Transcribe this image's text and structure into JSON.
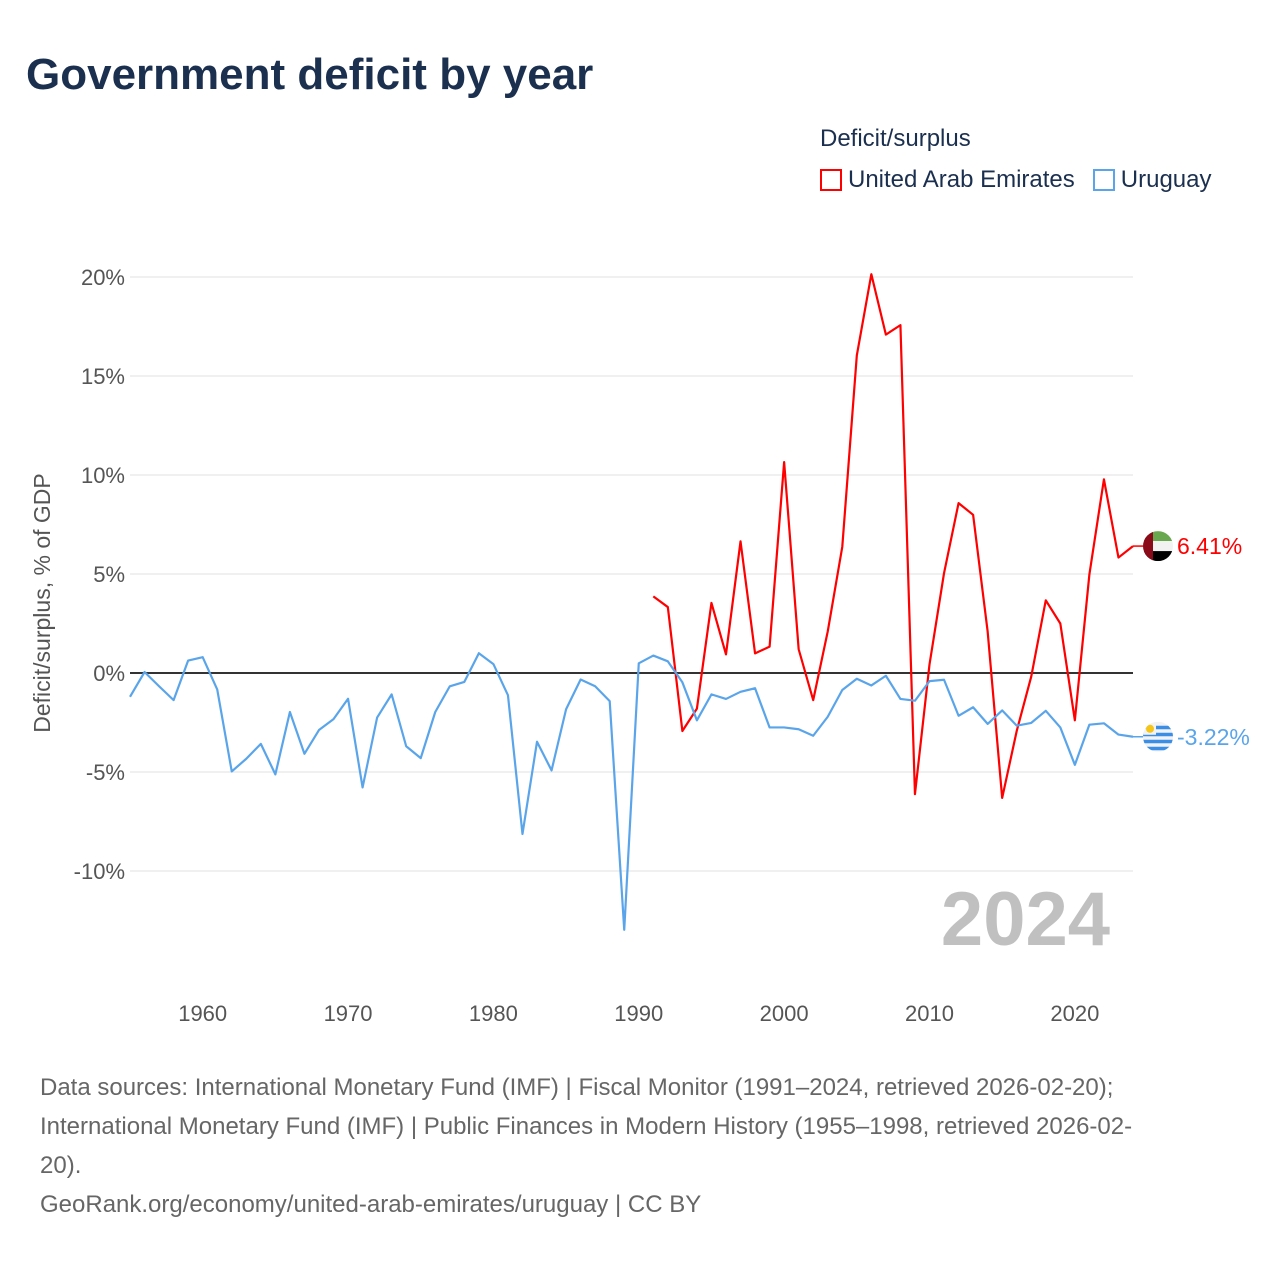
{
  "title": "Government deficit by year",
  "legend": {
    "title": "Deficit/surplus",
    "items": [
      {
        "label": "United Arab Emirates",
        "color": "#ff0000"
      },
      {
        "label": "Uruguay",
        "color": "#5aa5ea"
      }
    ]
  },
  "year_watermark": "2024",
  "sources": {
    "line1": "Data sources: International Monetary Fund (IMF) | Fiscal Monitor (1991–2024, retrieved 2026-02-20);",
    "line2": "International Monetary Fund (IMF) | Public Finances in Modern History (1955–1998, retrieved 2026-02-",
    "line3": "20).",
    "line4": "GeoRank.org/economy/united-arab-emirates/uruguay | CC BY"
  },
  "chart_data": {
    "type": "line",
    "title": "Government deficit by year",
    "xlabel": "",
    "ylabel": "Deficit/surplus, % of GDP",
    "xlim": [
      1955,
      2024
    ],
    "ylim": [
      -13,
      21
    ],
    "xticks": [
      1960,
      1970,
      1980,
      1990,
      2000,
      2010,
      2020
    ],
    "yticks": [
      -10,
      -5,
      0,
      5,
      10,
      15,
      20
    ],
    "ytick_labels": [
      "-10%",
      "-5%",
      "0%",
      "5%",
      "10%",
      "15%",
      "20%"
    ],
    "grid": true,
    "legend_position": "top-right",
    "series": [
      {
        "name": "United Arab Emirates",
        "color": "#ff0000",
        "end_label": "6.41%",
        "start_year": 1991,
        "values": [
          3.87,
          3.33,
          -2.93,
          -1.8,
          3.54,
          0.94,
          6.65,
          0.99,
          1.33,
          10.65,
          1.2,
          -1.37,
          2.1,
          6.37,
          16.04,
          20.14,
          17.09,
          17.57,
          -6.12,
          0.43,
          5.04,
          8.58,
          7.99,
          2.1,
          -6.31,
          -2.93,
          -0.18,
          3.67,
          2.5,
          -2.39,
          4.98,
          9.78,
          5.83,
          6.41
        ]
      },
      {
        "name": "Uruguay",
        "color": "#5aa5ea",
        "end_label": "-3.22%",
        "start_year": 1955,
        "values": [
          -1.2,
          0.05,
          -0.67,
          -1.37,
          0.63,
          0.8,
          -0.83,
          -4.97,
          -4.33,
          -3.58,
          -5.12,
          -1.97,
          -4.08,
          -2.88,
          -2.33,
          -1.3,
          -5.78,
          -2.25,
          -1.08,
          -3.7,
          -4.3,
          -1.97,
          -0.67,
          -0.45,
          1.0,
          0.45,
          -1.12,
          -8.13,
          -3.47,
          -4.92,
          -1.83,
          -0.33,
          -0.67,
          -1.42,
          -12.97,
          0.49,
          0.88,
          0.59,
          -0.47,
          -2.39,
          -1.08,
          -1.31,
          -0.95,
          -0.77,
          -2.75,
          -2.75,
          -2.84,
          -3.17,
          -2.21,
          -0.86,
          -0.29,
          -0.63,
          -0.14,
          -1.31,
          -1.4,
          -0.41,
          -0.34,
          -2.16,
          -1.73,
          -2.57,
          -1.89,
          -2.66,
          -2.52,
          -1.91,
          -2.75,
          -4.64,
          -2.61,
          -2.54,
          -3.11,
          -3.22
        ]
      }
    ]
  }
}
